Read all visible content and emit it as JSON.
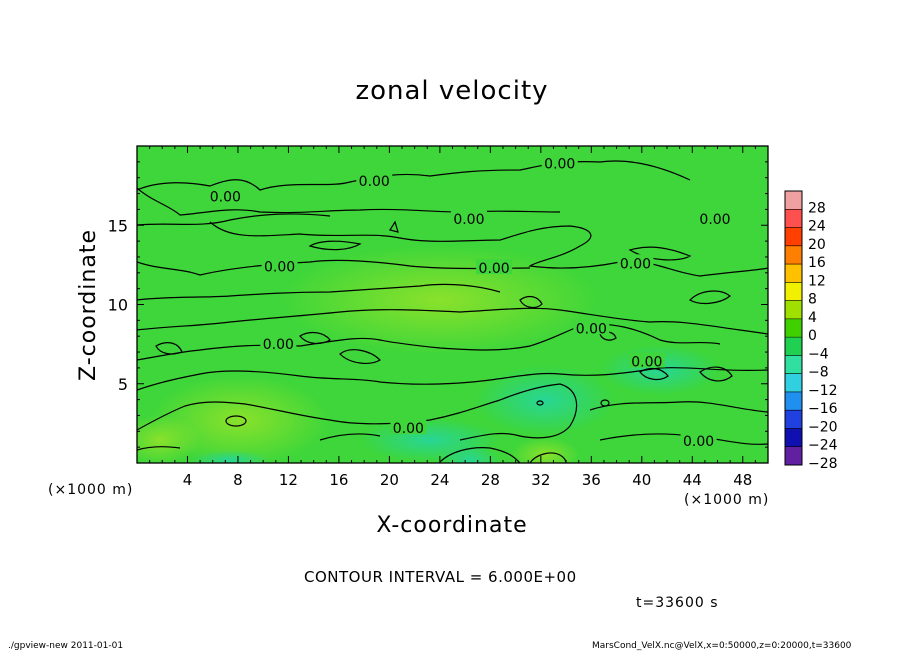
{
  "chart_data": {
    "type": "heatmap",
    "title": "zonal velocity",
    "xlabel": "X-coordinate",
    "ylabel": "Z-coordinate",
    "x_unit_label": "(×1000 m)",
    "y_unit_label": "(×1000 m)",
    "x_ticks": [
      4,
      8,
      12,
      16,
      20,
      24,
      28,
      32,
      36,
      40,
      44,
      48
    ],
    "y_ticks": [
      5,
      10,
      15
    ],
    "xlim": [
      0,
      50
    ],
    "ylim": [
      0,
      20
    ],
    "colorbar": {
      "levels": [
        28,
        24,
        20,
        16,
        12,
        8,
        4,
        0,
        -4,
        -8,
        -12,
        -16,
        -20,
        -24,
        -28
      ],
      "labels": [
        "28",
        "24",
        "20",
        "16",
        "12",
        "8",
        "4",
        "0",
        "−4",
        "−8",
        "−12",
        "−16",
        "−20",
        "−24",
        "−28"
      ],
      "colors": [
        "#f0a0a0",
        "#ff5050",
        "#ff4000",
        "#ff8000",
        "#ffc000",
        "#f0f000",
        "#a0e000",
        "#40d000",
        "#20d050",
        "#30e0a0",
        "#30d0e0",
        "#2090f0",
        "#2040e0",
        "#1010b0",
        "#6020a0"
      ]
    },
    "contour_labels": [
      {
        "text": "0.00",
        "x": 33.5,
        "z": 18.9
      },
      {
        "text": "0.00",
        "x": 18.8,
        "z": 17.8
      },
      {
        "text": "0.00",
        "x": 7.0,
        "z": 16.8
      },
      {
        "text": "0.00",
        "x": 26.3,
        "z": 15.4
      },
      {
        "text": "0.00",
        "x": 45.8,
        "z": 15.4
      },
      {
        "text": "0.00",
        "x": 11.3,
        "z": 12.4
      },
      {
        "text": "0.00",
        "x": 28.3,
        "z": 12.3
      },
      {
        "text": "0.00",
        "x": 39.5,
        "z": 12.6
      },
      {
        "text": "0.00",
        "x": 36.0,
        "z": 8.5
      },
      {
        "text": "0.00",
        "x": 11.2,
        "z": 7.5
      },
      {
        "text": "0.00",
        "x": 40.4,
        "z": 6.4
      },
      {
        "text": "0.00",
        "x": 21.5,
        "z": 2.2
      },
      {
        "text": "0.00",
        "x": 44.5,
        "z": 1.4
      }
    ],
    "field_colors": {
      "base": "#3ed63a",
      "positive": "#7de02a",
      "negative": "#28d890"
    }
  },
  "contour_interval_text": "CONTOUR INTERVAL = 6.000E+00",
  "time_text": "t=33600 s",
  "footer_left": "./gpview-new   2011-01-01",
  "footer_right": "MarsCond_VelX.nc@VelX,x=0:50000,z=0:20000,t=33600"
}
